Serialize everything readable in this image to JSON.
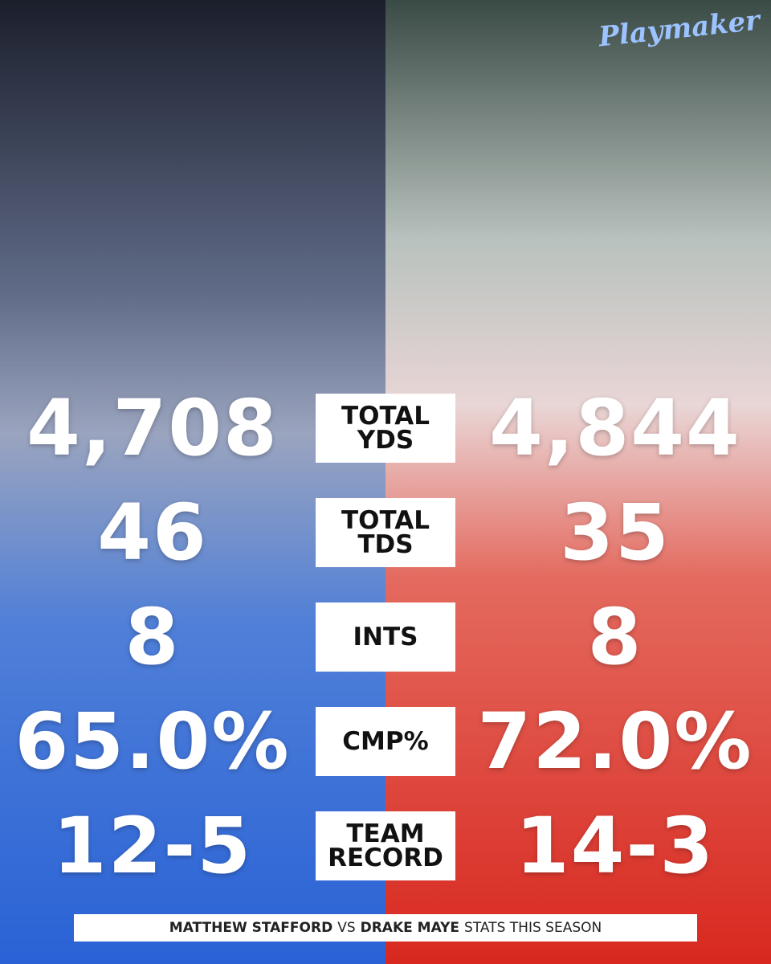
{
  "brand": "Playmaker",
  "rows": [
    {
      "label": [
        "TOTAL",
        "YDS"
      ],
      "left": "4,708",
      "right": "4,844"
    },
    {
      "label": [
        "TOTAL",
        "TDS"
      ],
      "left": "46",
      "right": "35"
    },
    {
      "label": [
        "INTS"
      ],
      "left": "8",
      "right": "8"
    },
    {
      "label": [
        "CMP%"
      ],
      "left": "65.0%",
      "right": "72.0%"
    },
    {
      "label": [
        "TEAM",
        "RECORD"
      ],
      "left": "12-5",
      "right": "14-3"
    }
  ],
  "footer": {
    "left_player": "MATTHEW STAFFORD",
    "versus": "VS",
    "right_player": "DRAKE MAYE",
    "suffix": "STATS THIS SEASON"
  }
}
